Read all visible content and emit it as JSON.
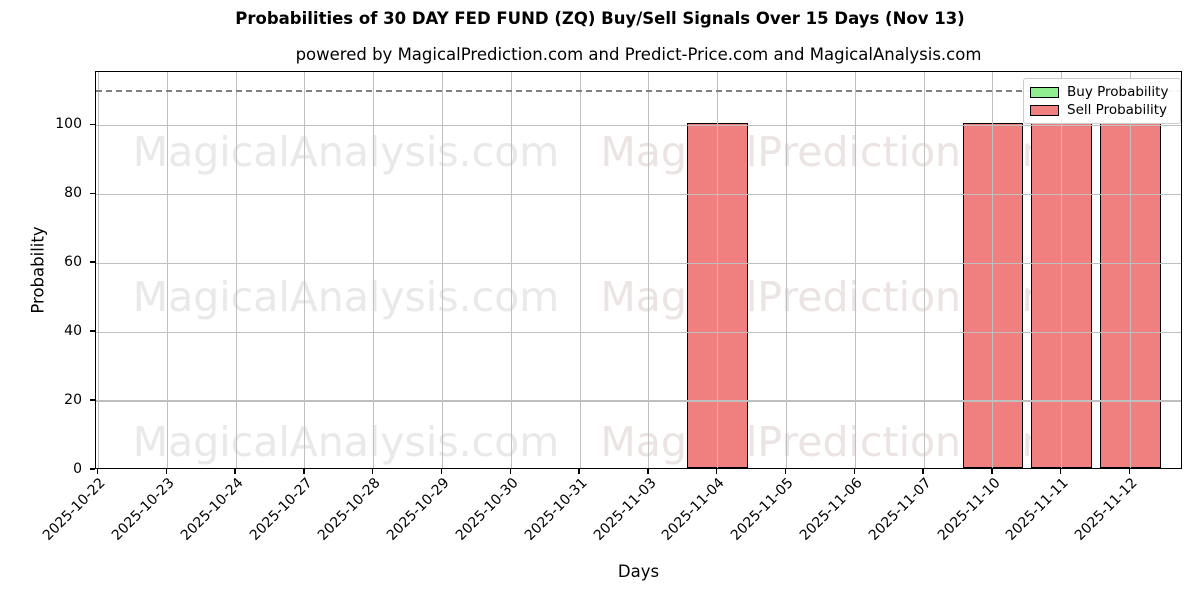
{
  "chart_data": {
    "type": "bar",
    "title": "Probabilities of 30 DAY FED FUND (ZQ) Buy/Sell Signals Over 15 Days (Nov 13)",
    "subtitle": "powered by MagicalPrediction.com and Predict-Price.com and MagicalAnalysis.com",
    "xlabel": "Days",
    "ylabel": "Probability",
    "categories": [
      "2025-10-22",
      "2025-10-23",
      "2025-10-24",
      "2025-10-27",
      "2025-10-28",
      "2025-10-29",
      "2025-10-30",
      "2025-10-31",
      "2025-11-03",
      "2025-11-04",
      "2025-11-05",
      "2025-11-06",
      "2025-11-07",
      "2025-11-10",
      "2025-11-11",
      "2025-11-12"
    ],
    "series": [
      {
        "name": "Buy Probability",
        "color": "#90ee90",
        "values": [
          0,
          0,
          0,
          0,
          0,
          0,
          0,
          0,
          0,
          0,
          0,
          0,
          0,
          0,
          0,
          0
        ]
      },
      {
        "name": "Sell Probability",
        "color": "#f08080",
        "values": [
          0,
          0,
          0,
          0,
          0,
          0,
          0,
          0,
          0,
          100,
          0,
          0,
          0,
          100,
          100,
          100
        ]
      }
    ],
    "yticks": [
      0,
      20,
      40,
      60,
      80,
      100
    ],
    "ylim": [
      0,
      115.5
    ],
    "threshold_line": {
      "value": 110,
      "style": "dashed",
      "color": "#808080"
    },
    "grid": true,
    "grid_color": "#bfbfbf",
    "legend_position": "top-right",
    "watermarks": {
      "left": {
        "text": "MagicalAnalysis.com",
        "color": "#e9e9e9"
      },
      "right": {
        "text": "MagicalPrediction.com",
        "color": "#ece3e3"
      }
    }
  }
}
